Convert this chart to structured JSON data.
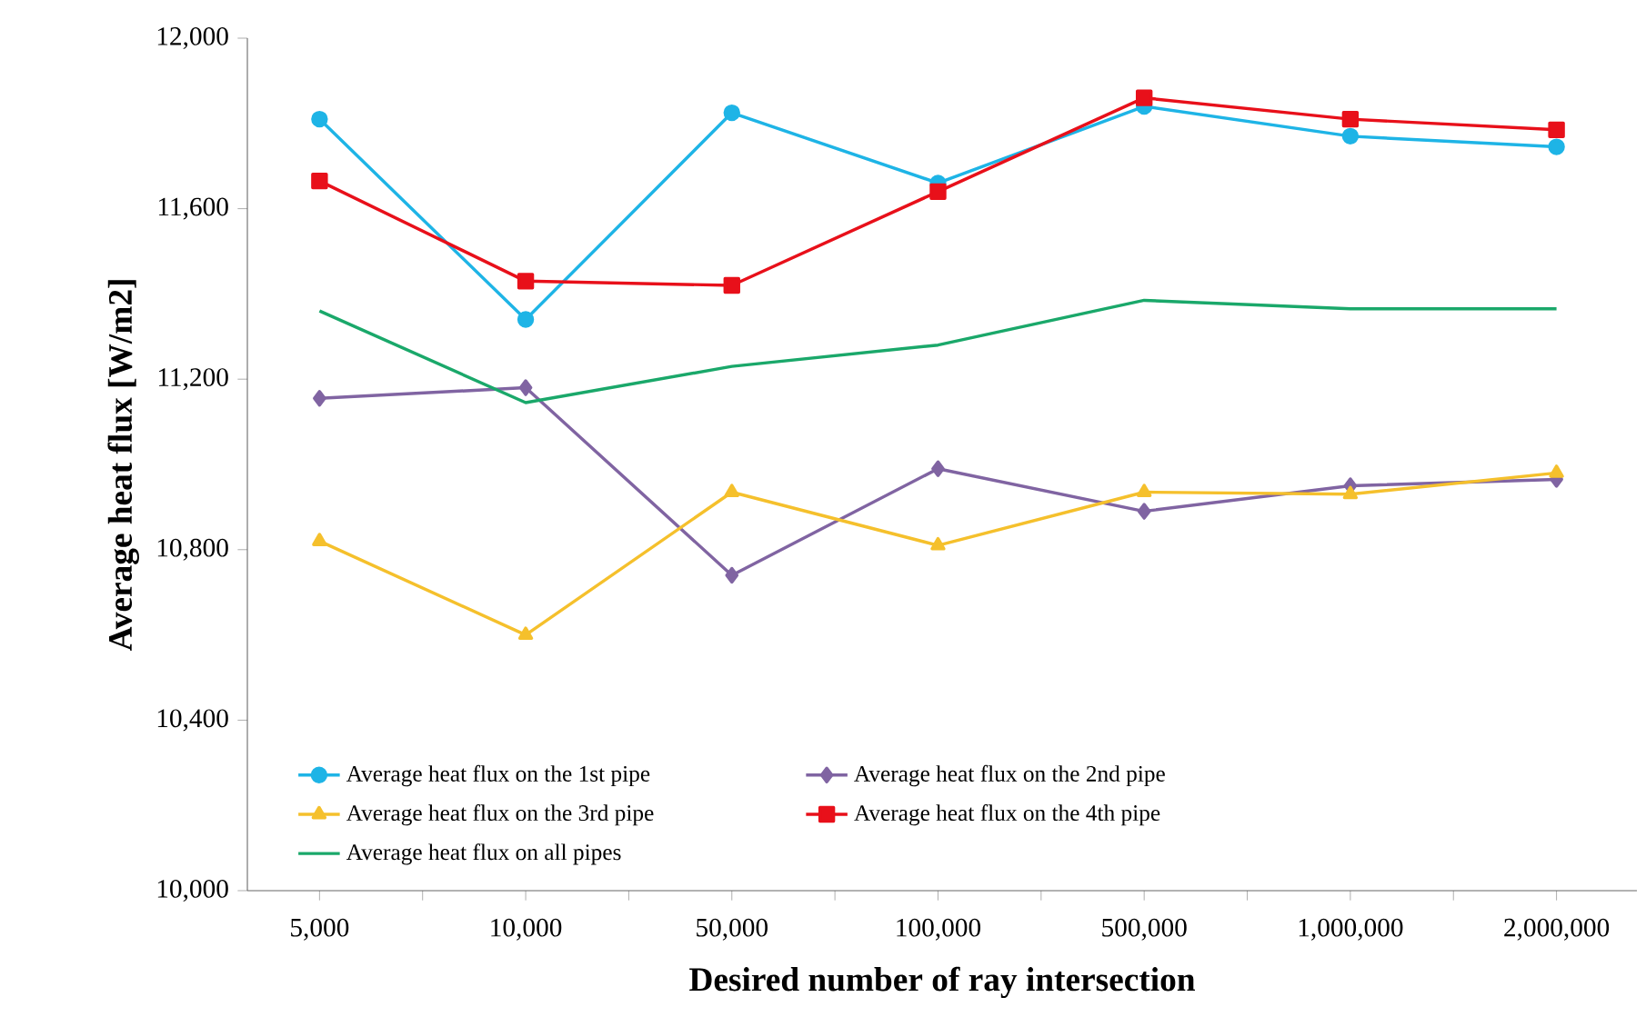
{
  "chart_data": {
    "type": "line",
    "xlabel": "Desired number of ray intersection",
    "ylabel": "Average heat flux [W/m2]",
    "categories": [
      "5,000",
      "10,000",
      "50,000",
      "100,000",
      "500,000",
      "1,000,000",
      "2,000,000"
    ],
    "ylim": [
      10000,
      12000
    ],
    "yticks": [
      {
        "value": 10000,
        "label": "10,000"
      },
      {
        "value": 10400,
        "label": "10,400"
      },
      {
        "value": 10800,
        "label": "10,800"
      },
      {
        "value": 11200,
        "label": "11,200"
      },
      {
        "value": 11600,
        "label": "11,600"
      },
      {
        "value": 12000,
        "label": "12,000"
      }
    ],
    "grid": false,
    "legend": "bottom left",
    "series": [
      {
        "name": "Average heat flux on the 1st pipe",
        "color": "#1eb4e6",
        "marker": "circle",
        "values": [
          11810,
          11340,
          11825,
          11660,
          11840,
          11770,
          11745
        ]
      },
      {
        "name": "Average heat flux on the 2nd pipe",
        "color": "#8064a2",
        "marker": "diamond",
        "values": [
          11155,
          11180,
          10740,
          10990,
          10890,
          10950,
          10965
        ]
      },
      {
        "name": "Average heat flux on the 3rd pipe",
        "color": "#f5c02c",
        "marker": "triangle",
        "values": [
          10820,
          10600,
          10935,
          10810,
          10935,
          10930,
          10980
        ]
      },
      {
        "name": "Average heat flux on the 4th pipe",
        "color": "#e8101a",
        "marker": "square",
        "values": [
          11665,
          11430,
          11420,
          11640,
          11860,
          11810,
          11785
        ]
      },
      {
        "name": "Average heat flux on all pipes",
        "color": "#1aa86a",
        "marker": "none",
        "values": [
          11360,
          11145,
          11230,
          11280,
          11385,
          11365,
          11365
        ]
      }
    ]
  }
}
